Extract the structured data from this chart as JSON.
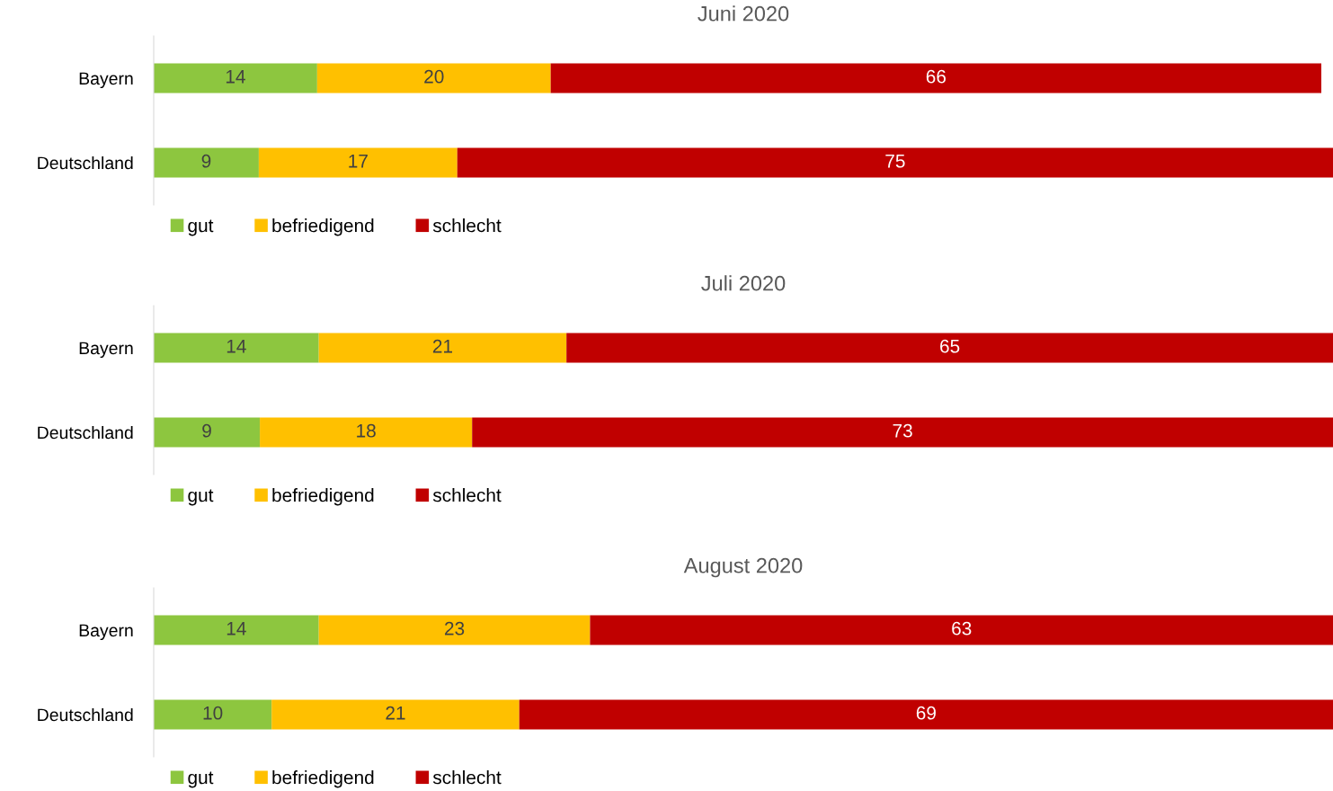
{
  "chart_data": [
    {
      "type": "bar",
      "orientation": "horizontal",
      "stacked": true,
      "data_labels": true,
      "title": "Juni 2020",
      "categories": [
        "Bayern",
        "Deutschland"
      ],
      "xlim": [
        0,
        101
      ],
      "legend": "bottom",
      "grid": false,
      "series": [
        {
          "name": "gut",
          "color": "#8dc63f",
          "values": [
            14,
            9
          ]
        },
        {
          "name": "befriedigend",
          "color": "#ffc000",
          "values": [
            20,
            17
          ]
        },
        {
          "name": "schlecht",
          "color": "#c00000",
          "values": [
            66,
            75
          ]
        }
      ]
    },
    {
      "type": "bar",
      "orientation": "horizontal",
      "stacked": true,
      "data_labels": true,
      "title": "Juli 2020",
      "categories": [
        "Bayern",
        "Deutschland"
      ],
      "xlim": [
        0,
        100
      ],
      "legend": "bottom",
      "grid": false,
      "series": [
        {
          "name": "gut",
          "color": "#8dc63f",
          "values": [
            14,
            9
          ]
        },
        {
          "name": "befriedigend",
          "color": "#ffc000",
          "values": [
            21,
            18
          ]
        },
        {
          "name": "schlecht",
          "color": "#c00000",
          "values": [
            65,
            73
          ]
        }
      ]
    },
    {
      "type": "bar",
      "orientation": "horizontal",
      "stacked": true,
      "data_labels": true,
      "title": "August 2020",
      "categories": [
        "Bayern",
        "Deutschland"
      ],
      "xlim": [
        0,
        100
      ],
      "legend": "bottom",
      "grid": false,
      "series": [
        {
          "name": "gut",
          "color": "#8dc63f",
          "values": [
            14,
            10
          ]
        },
        {
          "name": "befriedigend",
          "color": "#ffc000",
          "values": [
            23,
            21
          ]
        },
        {
          "name": "schlecht",
          "color": "#c00000",
          "values": [
            63,
            69
          ]
        }
      ]
    }
  ]
}
